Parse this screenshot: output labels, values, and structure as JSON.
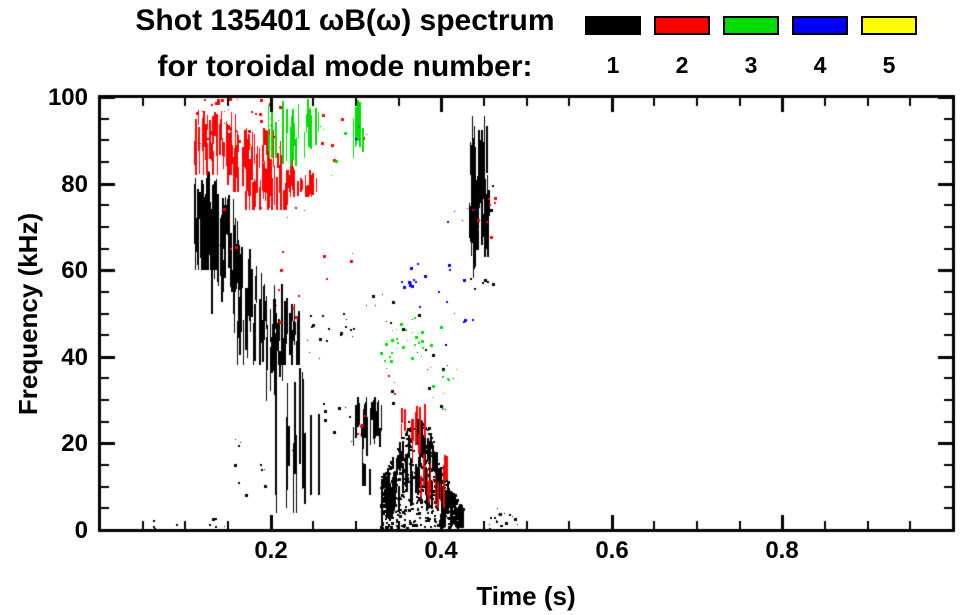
{
  "title": {
    "line1": "Shot 135401 ωB(ω) spectrum",
    "line2": "for toroidal mode number:"
  },
  "legend": {
    "position": "top-right",
    "items": [
      {
        "label": "1",
        "color": "#000000"
      },
      {
        "label": "2",
        "color": "#ff0000"
      },
      {
        "label": "3",
        "color": "#00dd00"
      },
      {
        "label": "4",
        "color": "#0000ff"
      },
      {
        "label": "5",
        "color": "#ffff00"
      }
    ]
  },
  "axes": {
    "xlabel": "Time (s)",
    "ylabel": "Frequency (kHz)",
    "x_ticks": [
      {
        "v": 0.2,
        "label": "0.2"
      },
      {
        "v": 0.4,
        "label": "0.4"
      },
      {
        "v": 0.6,
        "label": "0.6"
      },
      {
        "v": 0.8,
        "label": "0.8"
      }
    ],
    "x_minor_step": 0.05,
    "y_ticks": [
      {
        "v": 0,
        "label": "0"
      },
      {
        "v": 20,
        "label": "20"
      },
      {
        "v": 40,
        "label": "40"
      },
      {
        "v": 60,
        "label": "60"
      },
      {
        "v": 80,
        "label": "80"
      },
      {
        "v": 100,
        "label": "100"
      }
    ],
    "y_minor_step": 5
  },
  "chart_data": {
    "type": "scatter",
    "title": "Shot 135401 ωB(ω) spectrum for toroidal mode number: 1 2 3 4 5",
    "xlabel": "Time (s)",
    "ylabel": "Frequency (kHz)",
    "xlim": [
      0.0,
      1.0
    ],
    "ylim": [
      0,
      100
    ],
    "grid": false,
    "legend_position": "top-right",
    "series": [
      {
        "name": "mode 1",
        "mode": 1,
        "color": "#000000",
        "seed": 1001,
        "clusters": [
          {
            "kind": "streaks",
            "t": [
              0.108,
              0.136
            ],
            "f": [
              60,
              83
            ],
            "n": 60,
            "len": [
              6,
              20
            ]
          },
          {
            "kind": "streaks",
            "t": [
              0.128,
              0.162
            ],
            "f": [
              50,
              78
            ],
            "n": 45,
            "len": [
              5,
              16
            ]
          },
          {
            "kind": "streaks",
            "t": [
              0.155,
              0.192
            ],
            "f": [
              38,
              66
            ],
            "n": 40,
            "len": [
              4,
              14
            ]
          },
          {
            "kind": "streaks",
            "t": [
              0.185,
              0.216
            ],
            "f": [
              28,
              57
            ],
            "n": 30,
            "len": [
              4,
              12
            ]
          },
          {
            "kind": "streaks",
            "t": [
              0.204,
              0.236
            ],
            "f": [
              38,
              54
            ],
            "n": 28,
            "len": [
              3,
              10
            ]
          },
          {
            "kind": "streaks",
            "t": [
              0.204,
              0.24
            ],
            "f": [
              4,
              40
            ],
            "n": 14,
            "len": [
              8,
              28
            ]
          },
          {
            "kind": "dots",
            "t": [
              0.24,
              0.27
            ],
            "f": [
              36,
              50
            ],
            "n": 10
          },
          {
            "kind": "streaks",
            "t": [
              0.244,
              0.256
            ],
            "f": [
              8,
              45
            ],
            "n": 3,
            "len": [
              14,
              28
            ]
          },
          {
            "kind": "dots",
            "t": [
              0.155,
              0.25
            ],
            "f": [
              8,
              28
            ],
            "n": 12
          },
          {
            "kind": "dots",
            "t": [
              0.26,
              0.295
            ],
            "f": [
              20,
              34
            ],
            "n": 8
          },
          {
            "kind": "dots",
            "t": [
              0.28,
              0.3
            ],
            "f": [
              44,
              52
            ],
            "n": 8
          },
          {
            "kind": "streaks",
            "t": [
              0.296,
              0.33
            ],
            "f": [
              17,
              31
            ],
            "n": 30,
            "len": [
              3,
              8
            ]
          },
          {
            "kind": "streaks",
            "t": [
              0.3,
              0.316
            ],
            "f": [
              8,
              20
            ],
            "n": 5,
            "len": [
              4,
              10
            ]
          },
          {
            "kind": "blob",
            "t": [
              0.328,
              0.425
            ],
            "f_bottom": 0.5,
            "envelope": [
              [
                0.328,
                12
              ],
              [
                0.345,
                18
              ],
              [
                0.365,
                27
              ],
              [
                0.385,
                24
              ],
              [
                0.405,
                12
              ],
              [
                0.425,
                5
              ]
            ],
            "n_dots": 520,
            "n_streaks": 110
          },
          {
            "kind": "dots",
            "t": [
              0.33,
              0.42
            ],
            "f": [
              28,
              44
            ],
            "n": 14
          },
          {
            "kind": "dots",
            "t": [
              0.31,
              0.4
            ],
            "f": [
              45,
              55
            ],
            "n": 10
          },
          {
            "kind": "streaks",
            "t": [
              0.433,
              0.455
            ],
            "f": [
              58,
              96
            ],
            "n": 60,
            "len": [
              5,
              16
            ]
          },
          {
            "kind": "dots",
            "t": [
              0.43,
              0.46
            ],
            "f": [
              52,
              60
            ],
            "n": 6
          },
          {
            "kind": "dots",
            "t": [
              0.42,
              0.465
            ],
            "f": [
              70,
              80
            ],
            "n": 8
          },
          {
            "kind": "dots",
            "t": [
              0.455,
              0.49
            ],
            "f": [
              0,
              6
            ],
            "n": 18
          },
          {
            "kind": "dots",
            "t": [
              0.05,
              0.09
            ],
            "f": [
              0,
              3
            ],
            "n": 7
          },
          {
            "kind": "dots",
            "t": [
              0.125,
              0.148
            ],
            "f": [
              0,
              3
            ],
            "n": 5
          }
        ]
      },
      {
        "name": "mode 2",
        "mode": 2,
        "color": "#ff0000",
        "seed": 2002,
        "clusters": [
          {
            "kind": "dots",
            "t": [
              0.108,
              0.21
            ],
            "f": [
              88,
              100
            ],
            "n": 50
          },
          {
            "kind": "streaks",
            "t": [
              0.11,
              0.16
            ],
            "f": [
              82,
              97
            ],
            "n": 45,
            "len": [
              3,
              10
            ]
          },
          {
            "kind": "streaks",
            "t": [
              0.148,
              0.212
            ],
            "f": [
              78,
              93
            ],
            "n": 55,
            "len": [
              3,
              10
            ]
          },
          {
            "kind": "streaks",
            "t": [
              0.168,
              0.226
            ],
            "f": [
              74,
              86
            ],
            "n": 45,
            "len": [
              3,
              9
            ]
          },
          {
            "kind": "streaks",
            "t": [
              0.218,
              0.258
            ],
            "f": [
              77,
              84
            ],
            "n": 25,
            "len": [
              2,
              6
            ]
          },
          {
            "kind": "dots",
            "t": [
              0.14,
              0.245
            ],
            "f": [
              60,
              75
            ],
            "n": 12
          },
          {
            "kind": "dots",
            "t": [
              0.195,
              0.235
            ],
            "f": [
              44,
              58
            ],
            "n": 8
          },
          {
            "kind": "dots",
            "t": [
              0.25,
              0.31
            ],
            "f": [
              85,
              97
            ],
            "n": 7
          },
          {
            "kind": "dots",
            "t": [
              0.26,
              0.31
            ],
            "f": [
              55,
              66
            ],
            "n": 4
          },
          {
            "kind": "dots",
            "t": [
              0.3,
              0.322
            ],
            "f": [
              22,
              30
            ],
            "n": 6
          },
          {
            "kind": "streaks",
            "t": [
              0.352,
              0.382
            ],
            "f": [
              16,
              30
            ],
            "n": 15,
            "len": [
              3,
              8
            ]
          },
          {
            "kind": "streaks",
            "t": [
              0.374,
              0.408
            ],
            "f": [
              5,
              20
            ],
            "n": 15,
            "len": [
              3,
              8
            ]
          },
          {
            "kind": "dots",
            "t": [
              0.43,
              0.465
            ],
            "f": [
              66,
              78
            ],
            "n": 9
          },
          {
            "kind": "dots",
            "t": [
              0.328,
              0.35
            ],
            "f": [
              30,
              38
            ],
            "n": 4
          }
        ]
      },
      {
        "name": "mode 3",
        "mode": 3,
        "color": "#00dd00",
        "seed": 3003,
        "clusters": [
          {
            "kind": "streaks",
            "t": [
              0.196,
              0.206
            ],
            "f": [
              86,
              100
            ],
            "n": 7,
            "len": [
              4,
              12
            ]
          },
          {
            "kind": "streaks",
            "t": [
              0.213,
              0.233
            ],
            "f": [
              84,
              100
            ],
            "n": 12,
            "len": [
              4,
              12
            ]
          },
          {
            "kind": "streaks",
            "t": [
              0.238,
              0.258
            ],
            "f": [
              86,
              100
            ],
            "n": 8,
            "len": [
              3,
              10
            ]
          },
          {
            "kind": "streaks",
            "t": [
              0.296,
              0.308
            ],
            "f": [
              86,
              100
            ],
            "n": 6,
            "len": [
              4,
              12
            ]
          },
          {
            "kind": "dots",
            "t": [
              0.255,
              0.292
            ],
            "f": [
              82,
              94
            ],
            "n": 5
          },
          {
            "kind": "dots",
            "t": [
              0.328,
              0.378
            ],
            "f": [
              38,
              48
            ],
            "n": 26
          },
          {
            "kind": "dots",
            "t": [
              0.358,
              0.402
            ],
            "f": [
              42,
              50
            ],
            "n": 8
          },
          {
            "kind": "dots",
            "t": [
              0.385,
              0.425
            ],
            "f": [
              27,
              38
            ],
            "n": 10
          }
        ]
      },
      {
        "name": "mode 4",
        "mode": 4,
        "color": "#0000ff",
        "seed": 4004,
        "clusters": [
          {
            "kind": "dots",
            "t": [
              0.298,
              0.314
            ],
            "f": [
              88,
              94
            ],
            "n": 3
          },
          {
            "kind": "dots",
            "t": [
              0.345,
              0.43
            ],
            "f": [
              50,
              62
            ],
            "n": 13
          },
          {
            "kind": "dots",
            "t": [
              0.355,
              0.372
            ],
            "f": [
              55,
              62
            ],
            "n": 5
          },
          {
            "kind": "dots",
            "t": [
              0.4,
              0.445
            ],
            "f": [
              70,
              78
            ],
            "n": 6
          },
          {
            "kind": "dots",
            "t": [
              0.42,
              0.44
            ],
            "f": [
              45,
              52
            ],
            "n": 3
          }
        ]
      },
      {
        "name": "mode 5",
        "mode": 5,
        "color": "#ffff00",
        "seed": 5005,
        "clusters": []
      }
    ]
  }
}
